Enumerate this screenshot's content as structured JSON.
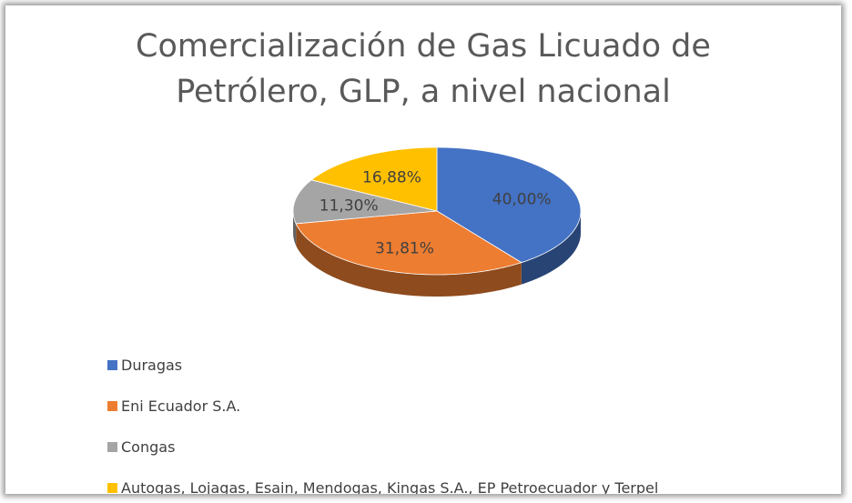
{
  "chart_data": {
    "type": "pie",
    "title": "Comercialización de Gas Licuado de Petrólero, GLP, a nivel nacional",
    "categories": [
      "Duragas",
      "Eni Ecuador S.A.",
      "Congas",
      "Autogas, Lojagas, Esain, Mendogas, Kingas S.A., EP Petroecuador y Terpel"
    ],
    "values": [
      40.0,
      31.81,
      11.3,
      16.88
    ],
    "value_labels": [
      "40,00%",
      "31,81%",
      "11,30%",
      "16,88%"
    ],
    "colors": [
      "#4472c4",
      "#ed7d31",
      "#a5a5a5",
      "#ffc000"
    ],
    "legend": "bottom-left"
  }
}
